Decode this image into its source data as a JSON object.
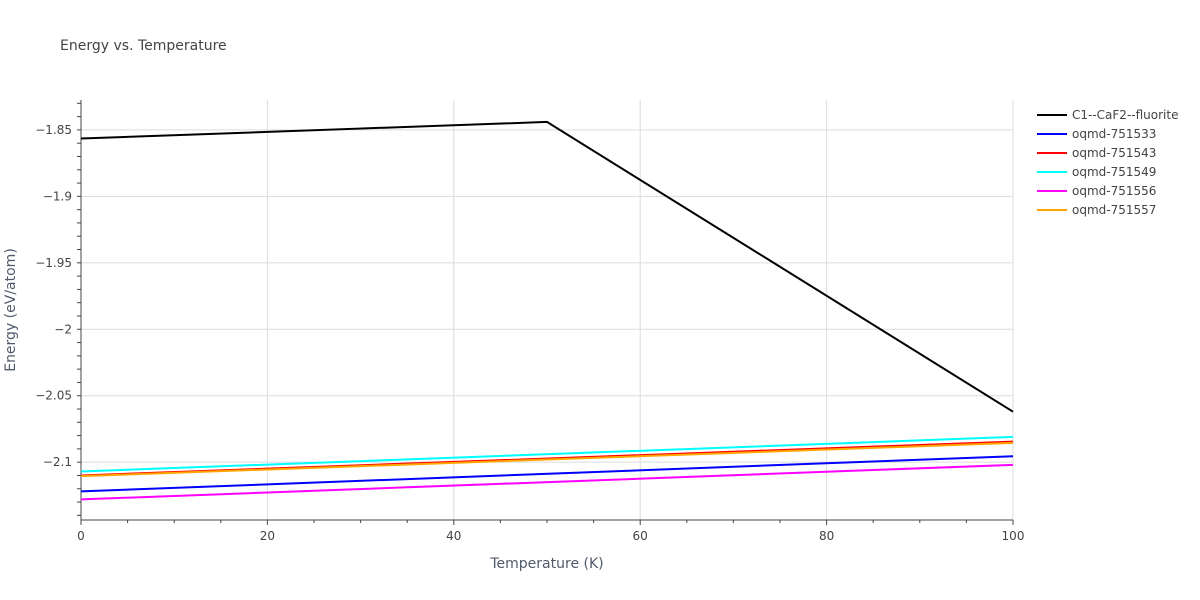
{
  "chart_data": {
    "type": "line",
    "title": "Energy vs. Temperature",
    "xlabel": "Temperature (K)",
    "ylabel": "Energy (eV/atom)",
    "xlim": [
      0,
      100
    ],
    "ylim": [
      -2.1435,
      -1.8275
    ],
    "xticks": [
      0,
      20,
      40,
      60,
      80,
      100
    ],
    "xtick_labels": [
      "0",
      "20",
      "40",
      "60",
      "80",
      "100"
    ],
    "yticks": [
      -1.85,
      -1.9,
      -1.95,
      -2.0,
      -2.05,
      -2.1
    ],
    "ytick_labels": [
      "−1.85",
      "−1.9",
      "−1.95",
      "−2",
      "−2.05",
      "−2.1"
    ],
    "grid": true,
    "legend_position": "top-right",
    "series": [
      {
        "name": "C1--CaF2--fluorite",
        "color": "#000000",
        "x": [
          0,
          50,
          100
        ],
        "y": [
          -1.8565,
          -1.844,
          -2.062
        ]
      },
      {
        "name": "oqmd-751533",
        "color": "#0000ff",
        "x": [
          0,
          100
        ],
        "y": [
          -2.122,
          -2.0955
        ]
      },
      {
        "name": "oqmd-751543",
        "color": "#ff0000",
        "x": [
          0,
          100
        ],
        "y": [
          -2.11,
          -2.0845
        ]
      },
      {
        "name": "oqmd-751549",
        "color": "#00ffff",
        "x": [
          0,
          100
        ],
        "y": [
          -2.107,
          -2.081
        ]
      },
      {
        "name": "oqmd-751556",
        "color": "#ff00ff",
        "x": [
          0,
          100
        ],
        "y": [
          -2.128,
          -2.102
        ]
      },
      {
        "name": "oqmd-751557",
        "color": "#ffa500",
        "x": [
          0,
          100
        ],
        "y": [
          -2.1105,
          -2.0855
        ]
      }
    ]
  }
}
